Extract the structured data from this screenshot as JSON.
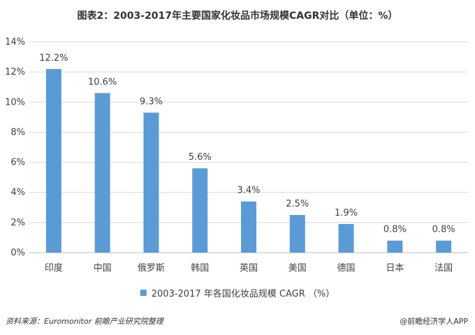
{
  "chart_data": {
    "type": "bar",
    "title": "图表2：2003-2017年主要国家化妆品市场规模CAGR对比（单位：%）",
    "categories": [
      "印度",
      "中国",
      "俄罗斯",
      "韩国",
      "英国",
      "美国",
      "德国",
      "日本",
      "法国"
    ],
    "series": [
      {
        "name": "2003-2017 年各国化妆品规模 CAGR （%）",
        "values": [
          12.2,
          10.6,
          9.3,
          5.6,
          3.4,
          2.5,
          1.9,
          0.8,
          0.8
        ],
        "data_labels": [
          "12.2%",
          "10.6%",
          "9.3%",
          "5.6%",
          "3.4%",
          "2.5%",
          "1.9%",
          "0.8%",
          "0.8%"
        ],
        "color": "#5B9BD5"
      }
    ],
    "ylim": [
      0,
      14
    ],
    "yticks": [
      0,
      2,
      4,
      6,
      8,
      10,
      12,
      14
    ],
    "ytick_labels": [
      "0%",
      "2%",
      "4%",
      "6%",
      "8%",
      "10%",
      "12%",
      "14%"
    ],
    "xlabel": "",
    "ylabel": "",
    "grid": true,
    "legend_position": "bottom"
  },
  "footer": {
    "source": "资料来源：Euromonitor 前瞻产业研究院整理",
    "brand": "@前瞻经济学人APP"
  }
}
